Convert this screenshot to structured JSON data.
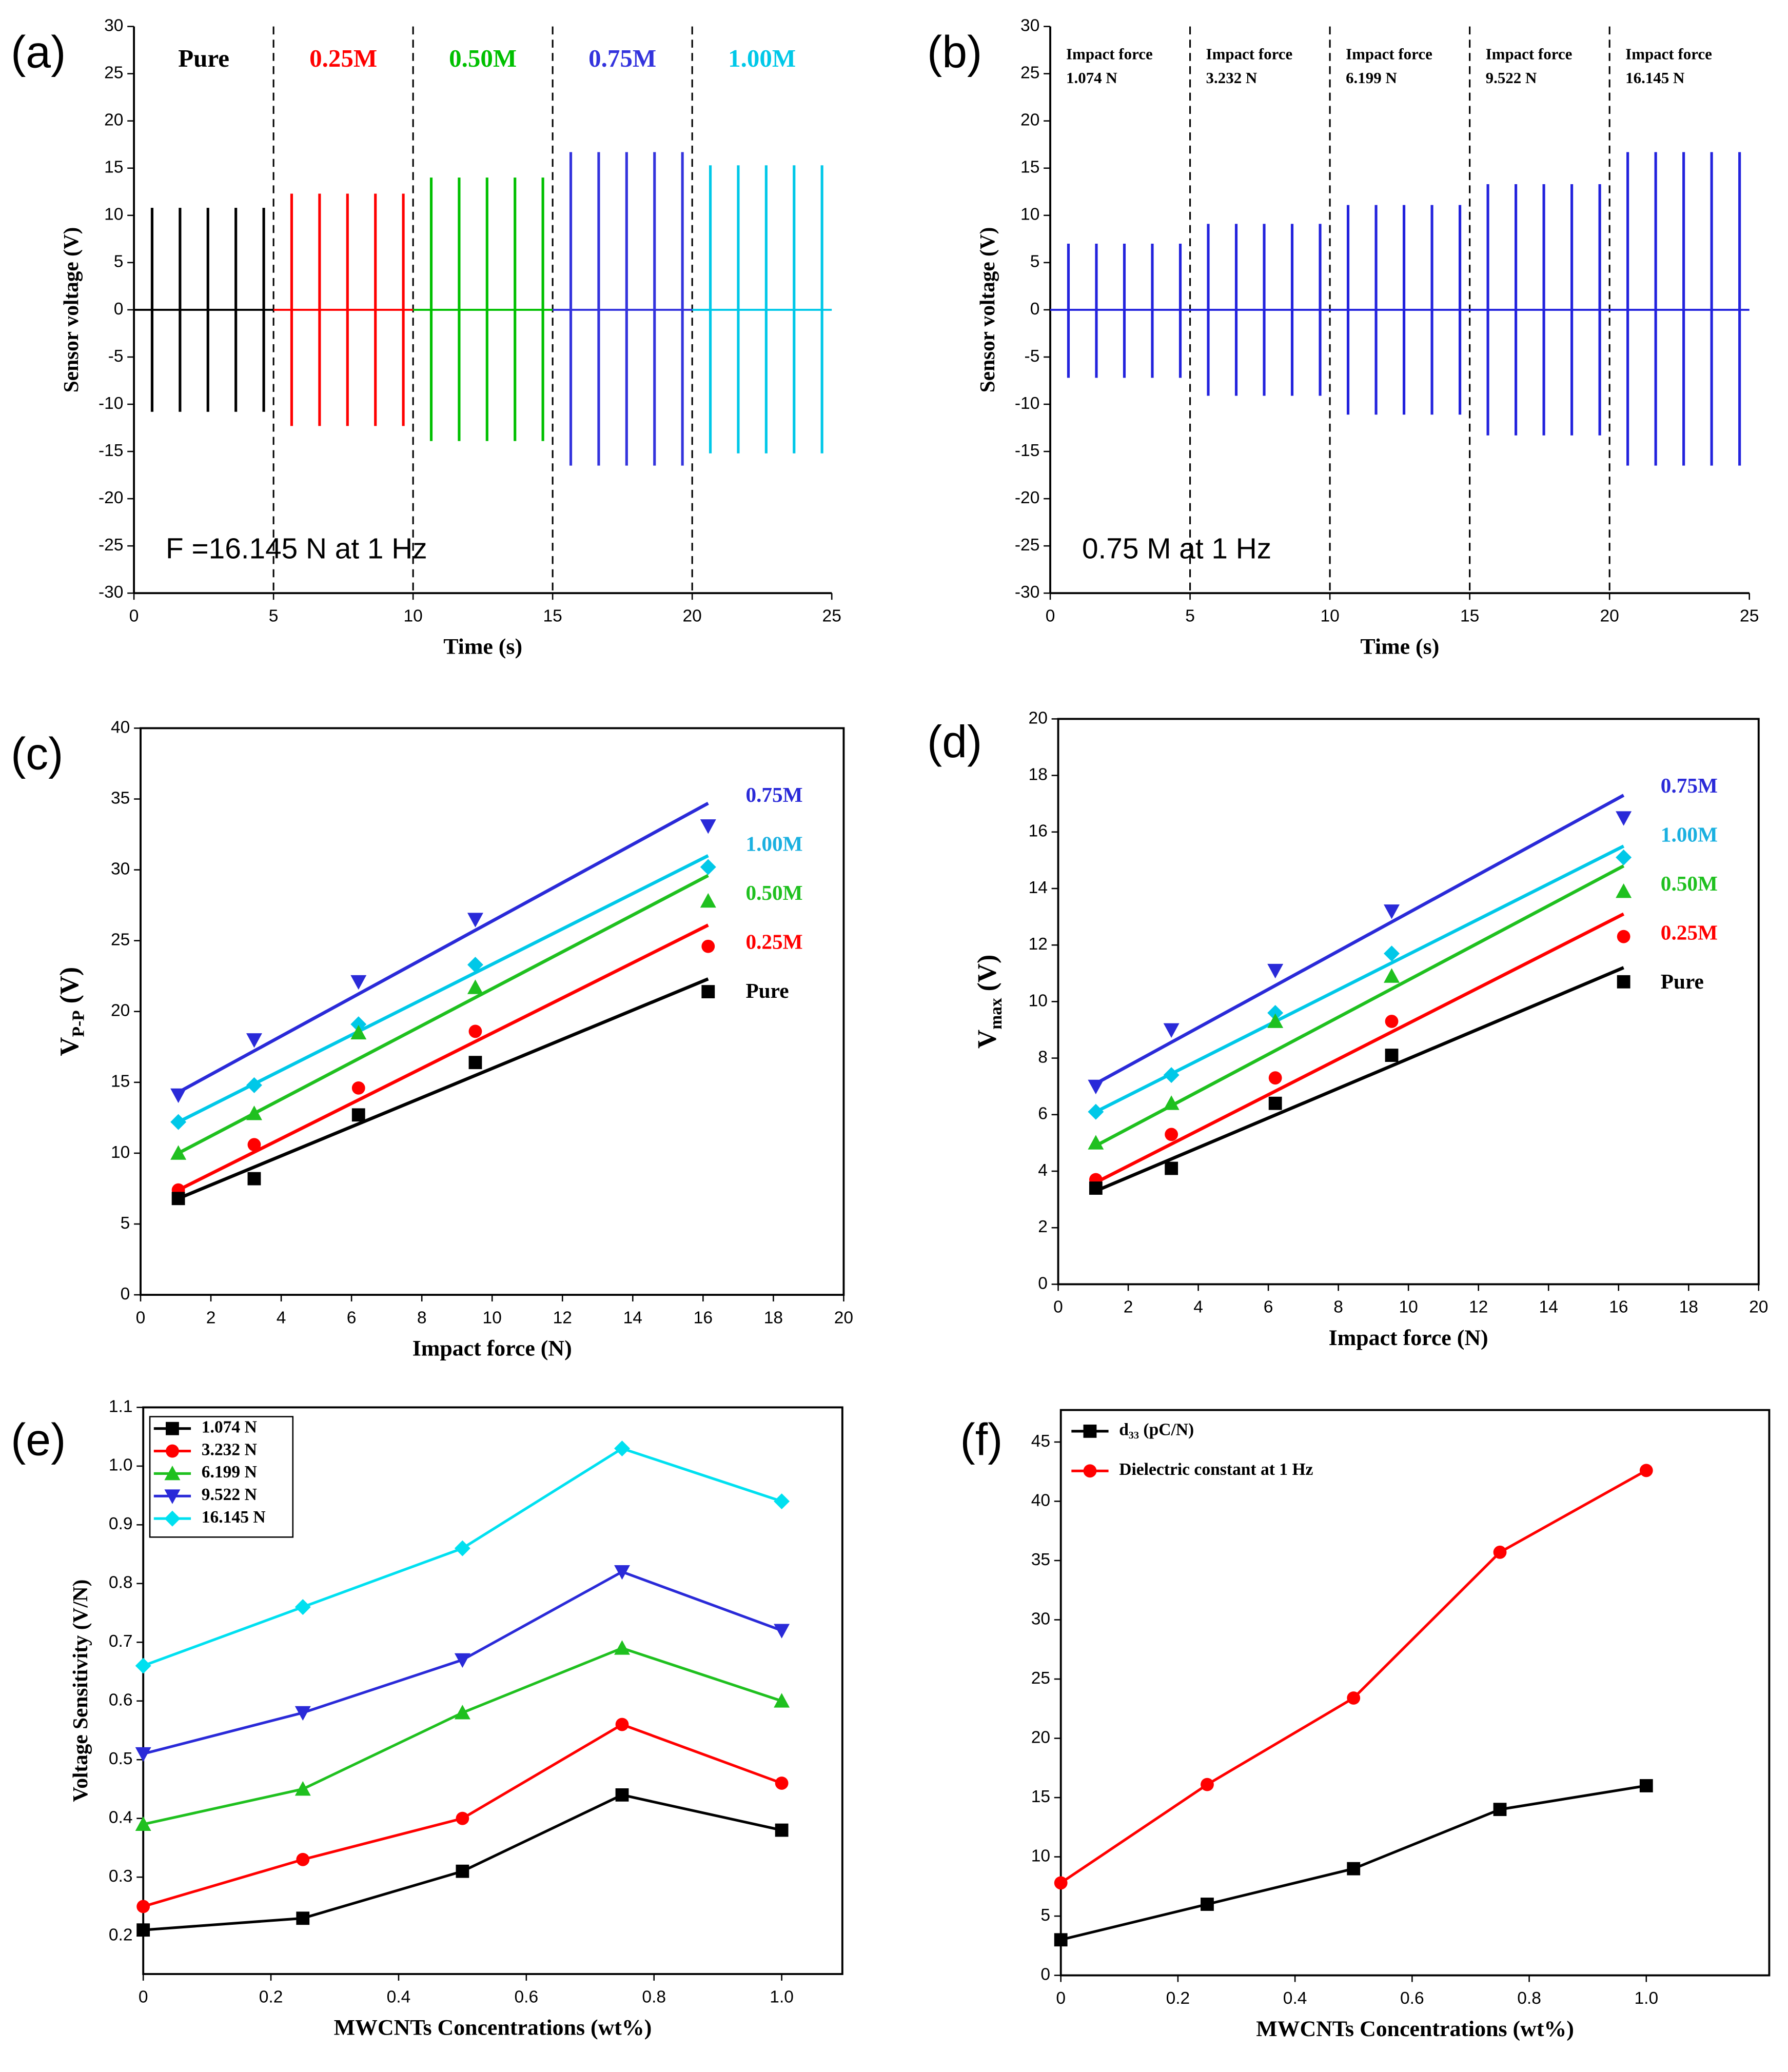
{
  "chart_data": [
    {
      "panel_label": "(a)",
      "type": "pulse",
      "xlabel": "Time (s)",
      "ylabel": "Sensor voltage (V)",
      "xlim": [
        0,
        25
      ],
      "ylim": [
        -30,
        30
      ],
      "xticks": [
        0,
        5,
        10,
        15,
        20,
        25
      ],
      "yticks": [
        -30,
        -25,
        -20,
        -15,
        -10,
        -5,
        0,
        5,
        10,
        15,
        20,
        25,
        30
      ],
      "vlines": [
        5,
        10,
        15,
        20
      ],
      "annotation": "F =16.145 N at 1 Hz",
      "series": [
        {
          "name": "Pure",
          "color": "#000000",
          "x": [
            0.65,
            1.65,
            2.65,
            3.65,
            4.65
          ],
          "values": [
            10.8,
            10.8,
            10.8,
            10.8,
            10.8
          ],
          "lows": [
            -10.8,
            -10.8,
            -10.8,
            -10.8,
            -10.8
          ]
        },
        {
          "name": "0.25M",
          "color": "#ff0000",
          "x": [
            5.65,
            6.65,
            7.65,
            8.65,
            9.65
          ],
          "values": [
            12.3,
            12.3,
            12.3,
            12.3,
            12.3
          ],
          "lows": [
            -12.3,
            -12.3,
            -12.3,
            -12.3,
            -12.3
          ]
        },
        {
          "name": "0.50M",
          "color": "#00c000",
          "x": [
            10.65,
            11.65,
            12.65,
            13.65,
            14.65
          ],
          "values": [
            14.0,
            14.0,
            14.0,
            14.0,
            14.0
          ],
          "lows": [
            -13.9,
            -13.9,
            -13.9,
            -13.9,
            -13.9
          ]
        },
        {
          "name": "0.75M",
          "color": "#3333dd",
          "x": [
            15.65,
            16.65,
            17.65,
            18.65,
            19.65
          ],
          "values": [
            16.7,
            16.7,
            16.7,
            16.7,
            16.7
          ],
          "lows": [
            -16.5,
            -16.5,
            -16.5,
            -16.5,
            -16.5
          ]
        },
        {
          "name": "1.00M",
          "color": "#00c8e8",
          "x": [
            20.65,
            21.65,
            22.65,
            23.65,
            24.65
          ],
          "values": [
            15.3,
            15.3,
            15.3,
            15.3,
            15.3
          ],
          "lows": [
            -15.2,
            -15.2,
            -15.2,
            -15.2,
            -15.2
          ]
        }
      ]
    },
    {
      "panel_label": "(b)",
      "type": "pulse",
      "xlabel": "Time (s)",
      "ylabel": "Sensor voltage (V)",
      "xlim": [
        0,
        25
      ],
      "ylim": [
        -30,
        30
      ],
      "xticks": [
        0,
        5,
        10,
        15,
        20,
        25
      ],
      "yticks": [
        -30,
        -25,
        -20,
        -15,
        -10,
        -5,
        0,
        5,
        10,
        15,
        20,
        25,
        30
      ],
      "vlines": [
        5,
        10,
        15,
        20
      ],
      "annotation": "0.75 M at 1 Hz",
      "series": [
        {
          "name_lines": [
            "Impact force",
            "1.074 N"
          ],
          "color": "#2222dd",
          "x": [
            0.65,
            1.65,
            2.65,
            3.65,
            4.65
          ],
          "values": [
            7.0,
            7.0,
            7.0,
            7.0,
            7.0
          ],
          "lows": [
            -7.2,
            -7.2,
            -7.2,
            -7.2,
            -7.2
          ]
        },
        {
          "name_lines": [
            "Impact force",
            "3.232 N"
          ],
          "color": "#2222dd",
          "x": [
            5.65,
            6.65,
            7.65,
            8.65,
            9.65
          ],
          "values": [
            9.1,
            9.1,
            9.1,
            9.1,
            9.1
          ],
          "lows": [
            -9.1,
            -9.1,
            -9.1,
            -9.1,
            -9.1
          ]
        },
        {
          "name_lines": [
            "Impact force",
            "6.199 N"
          ],
          "color": "#2222dd",
          "x": [
            10.65,
            11.65,
            12.65,
            13.65,
            14.65
          ],
          "values": [
            11.1,
            11.1,
            11.1,
            11.1,
            11.1
          ],
          "lows": [
            -11.1,
            -11.1,
            -11.1,
            -11.1,
            -11.1
          ]
        },
        {
          "name_lines": [
            "Impact force",
            "9.522 N"
          ],
          "color": "#2222dd",
          "x": [
            15.65,
            16.65,
            17.65,
            18.65,
            19.65
          ],
          "values": [
            13.3,
            13.3,
            13.3,
            13.3,
            13.3
          ],
          "lows": [
            -13.3,
            -13.3,
            -13.3,
            -13.3,
            -13.3
          ]
        },
        {
          "name_lines": [
            "Impact force",
            "16.145 N"
          ],
          "color": "#2222dd",
          "x": [
            20.65,
            21.65,
            22.65,
            23.65,
            24.65
          ],
          "values": [
            16.7,
            16.7,
            16.7,
            16.7,
            16.7
          ],
          "lows": [
            -16.5,
            -16.5,
            -16.5,
            -16.5,
            -16.5
          ]
        }
      ]
    },
    {
      "panel_label": "(c)",
      "type": "scatter",
      "xlabel": "Impact force (N)",
      "ylabel_parts": [
        "V",
        "P-P",
        "(V)"
      ],
      "xlim": [
        0,
        20
      ],
      "ylim": [
        0,
        40
      ],
      "xticks": [
        0,
        2,
        4,
        6,
        8,
        10,
        12,
        14,
        16,
        18,
        20
      ],
      "yticks": [
        0,
        5,
        10,
        15,
        20,
        25,
        30,
        35,
        40
      ],
      "x": [
        1.074,
        3.232,
        6.199,
        9.522,
        16.145
      ],
      "series": [
        {
          "name": "0.75M",
          "color": "#2a2ad8",
          "marker": "triangle-down",
          "values": [
            14.1,
            18.0,
            22.1,
            26.5,
            33.1
          ],
          "fit": [
            14.3,
            34.7
          ]
        },
        {
          "name": "1.00M",
          "color": "#00c8e8",
          "marker": "diamond",
          "values": [
            12.2,
            14.8,
            19.1,
            23.3,
            30.2
          ],
          "fit": [
            12.2,
            31.0
          ]
        },
        {
          "name": "0.50M",
          "color": "#1fc01f",
          "marker": "triangle-up",
          "values": [
            10.0,
            12.8,
            18.5,
            21.7,
            27.8
          ],
          "fit": [
            10.0,
            29.6
          ]
        },
        {
          "name": "0.25M",
          "color": "#ff0000",
          "marker": "circle",
          "values": [
            7.4,
            10.6,
            14.6,
            18.6,
            24.6
          ],
          "fit": [
            7.4,
            26.1
          ]
        },
        {
          "name": "Pure",
          "color": "#000000",
          "marker": "square",
          "values": [
            6.8,
            8.2,
            12.7,
            16.4,
            21.4
          ],
          "fit": [
            6.8,
            22.3
          ]
        }
      ]
    },
    {
      "panel_label": "(d)",
      "type": "scatter",
      "xlabel": "Impact force (N)",
      "ylabel_parts": [
        "V",
        "max",
        "(V)"
      ],
      "xlim": [
        0,
        20
      ],
      "ylim": [
        0,
        20
      ],
      "xticks": [
        0,
        2,
        4,
        6,
        8,
        10,
        12,
        14,
        16,
        18,
        20
      ],
      "yticks": [
        0,
        2,
        4,
        6,
        8,
        10,
        12,
        14,
        16,
        18,
        20
      ],
      "x": [
        1.074,
        3.232,
        6.199,
        9.522,
        16.145
      ],
      "series": [
        {
          "name": "0.75M",
          "color": "#2a2ad8",
          "marker": "triangle-down",
          "values": [
            7.0,
            9.0,
            11.1,
            13.2,
            16.5
          ],
          "fit": [
            7.1,
            17.3
          ]
        },
        {
          "name": "1.00M",
          "color": "#00c8e8",
          "marker": "diamond",
          "values": [
            6.1,
            7.4,
            9.6,
            11.7,
            15.1
          ],
          "fit": [
            6.1,
            15.5
          ]
        },
        {
          "name": "0.50M",
          "color": "#1fc01f",
          "marker": "triangle-up",
          "values": [
            5.0,
            6.4,
            9.3,
            10.9,
            13.9
          ],
          "fit": [
            4.9,
            14.8
          ]
        },
        {
          "name": "0.25M",
          "color": "#ff0000",
          "marker": "circle",
          "values": [
            3.7,
            5.3,
            7.3,
            9.3,
            12.3
          ],
          "fit": [
            3.6,
            13.1
          ]
        },
        {
          "name": "Pure",
          "color": "#000000",
          "marker": "square",
          "values": [
            3.4,
            4.1,
            6.4,
            8.1,
            10.7
          ],
          "fit": [
            3.3,
            11.2
          ]
        }
      ]
    },
    {
      "panel_label": "(e)",
      "type": "line",
      "xlabel": "MWCNTs Concentrations (wt%)",
      "ylabel": "Voltage Sensitivity (V/N)",
      "xlim": [
        0,
        1.095
      ],
      "ylim": [
        0.135,
        1.1
      ],
      "xticks": [
        0,
        0.2,
        0.4,
        0.6,
        0.8,
        {
          "value": 1,
          "label": "1.0"
        }
      ],
      "yticks": [
        0.2,
        0.3,
        0.4,
        0.5,
        0.6,
        0.7,
        0.8,
        0.9,
        {
          "value": 1,
          "label": "1.0"
        },
        1.1
      ],
      "legend": "upper left",
      "legend_box": true,
      "x": [
        0,
        0.25,
        0.5,
        0.75,
        1.0
      ],
      "series": [
        {
          "name": "1.074 N",
          "color": "#000000",
          "marker": "square",
          "values": [
            0.21,
            0.23,
            0.31,
            0.44,
            0.38
          ]
        },
        {
          "name": "3.232 N",
          "color": "#ff0000",
          "marker": "circle",
          "values": [
            0.25,
            0.33,
            0.4,
            0.56,
            0.46
          ]
        },
        {
          "name": "6.199 N",
          "color": "#1fc01f",
          "marker": "triangle-up",
          "values": [
            0.39,
            0.45,
            0.58,
            0.69,
            0.6
          ]
        },
        {
          "name": "9.522 N",
          "color": "#2a2ad8",
          "marker": "triangle-down",
          "values": [
            0.51,
            0.58,
            0.67,
            0.82,
            0.72
          ]
        },
        {
          "name": "16.145 N",
          "color": "#00e0f0",
          "marker": "diamond",
          "values": [
            0.66,
            0.76,
            0.86,
            1.03,
            0.94
          ]
        }
      ]
    },
    {
      "panel_label": "(f)",
      "type": "line",
      "xlabel": "MWCNTs Concentrations (wt%)",
      "xlim": [
        0,
        1.21
      ],
      "ylim": [
        0,
        47.7
      ],
      "xticks": [
        0,
        0.2,
        0.4,
        0.6,
        0.8,
        {
          "value": 1,
          "label": "1.0"
        }
      ],
      "yticks": [
        0,
        5,
        10,
        15,
        20,
        25,
        30,
        35,
        40,
        45
      ],
      "legend": "upper left",
      "legend_box": false,
      "x": [
        0,
        0.25,
        0.5,
        0.75,
        1.0
      ],
      "series": [
        {
          "name": "d₃₃ (pC/N)",
          "color": "#000000",
          "marker": "square",
          "values": [
            3,
            6,
            9,
            14,
            16
          ]
        },
        {
          "name": "Dielectric constant at 1 Hz",
          "color": "#ff0000",
          "marker": "circle",
          "values": [
            7.8,
            16.1,
            23.4,
            35.7,
            42.6
          ]
        }
      ]
    }
  ]
}
